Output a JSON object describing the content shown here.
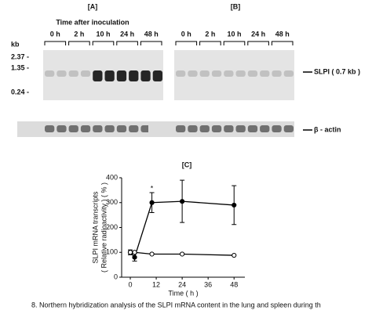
{
  "figure": {
    "panel_a": "[A]",
    "panel_b": "[B]",
    "panel_c": "[C]",
    "time_label": "Time after inoculation",
    "lanes": [
      "0 h",
      "2 h",
      "10 h",
      "24 h",
      "48 h"
    ],
    "kb": "kb",
    "markers": [
      "2.37 -",
      "1.35 -",
      "0.24 -"
    ],
    "slpi": "SLPI ( 0.7 kb )",
    "actin": "β - actin",
    "caption": "8. Northern hybridization analysis of the SLPI mRNA content in the lung and spleen during th"
  },
  "chart_data": {
    "type": "line",
    "x": [
      0,
      2,
      10,
      24,
      48
    ],
    "y_label": [
      "SLPI mRNA transcripts",
      "( Relative radioactivity ) ( % )"
    ],
    "x_label": "Time ( h )",
    "series": [
      {
        "name": "lung",
        "color": "#000000",
        "values": [
          100,
          80,
          300,
          305,
          290
        ],
        "errors": [
          10,
          15,
          40,
          85,
          78
        ]
      },
      {
        "name": "spleen",
        "color": "#ffffff",
        "values": [
          100,
          100,
          93,
          93,
          88
        ]
      }
    ],
    "annotation": "*",
    "xlim": [
      -4,
      53
    ],
    "ylim": [
      0,
      400
    ],
    "xticks": [
      0,
      12,
      24,
      36,
      48
    ],
    "yticks": [
      0,
      100,
      200,
      300,
      400
    ]
  }
}
